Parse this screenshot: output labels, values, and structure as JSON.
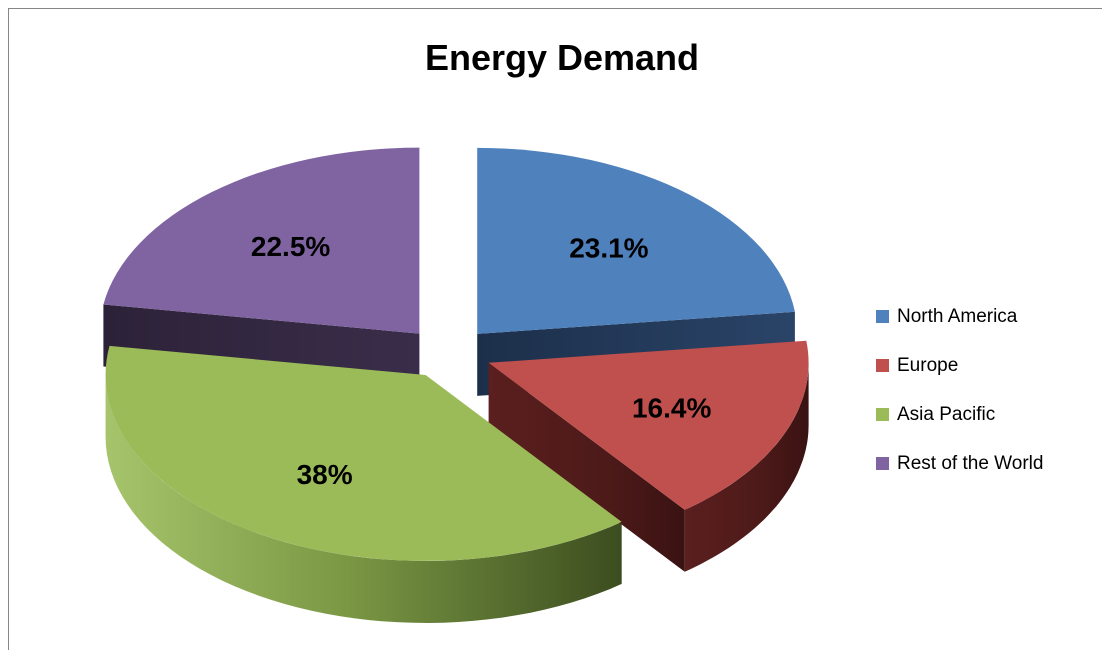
{
  "chart_data": {
    "type": "pie",
    "title": "Energy Demand",
    "categories": [
      "North America",
      "Europe",
      "Asia Pacific",
      "Rest of the World"
    ],
    "values": [
      23.1,
      16.4,
      38,
      22.5
    ],
    "labels": [
      "23.1%",
      "16.4%",
      "38%",
      "22.5%"
    ],
    "colors": [
      "#4f81bd",
      "#c0504d",
      "#9bbb59",
      "#8064a2"
    ],
    "style": "3d-exploded",
    "legend_position": "right"
  }
}
